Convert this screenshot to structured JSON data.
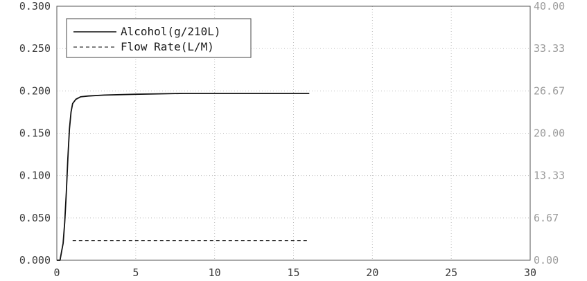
{
  "chart_data": {
    "type": "line",
    "title": "",
    "xlabel": "",
    "ylabel": "",
    "y2label": "",
    "xlim": [
      0,
      30
    ],
    "ylim": [
      0,
      0.3
    ],
    "y2lim": [
      0,
      40
    ],
    "grid": true,
    "legend_position": "top-left",
    "x_ticks": [
      "0",
      "5",
      "10",
      "15",
      "20",
      "25",
      "30"
    ],
    "y_ticks": [
      "0.000",
      "0.050",
      "0.100",
      "0.150",
      "0.200",
      "0.250",
      "0.300"
    ],
    "y2_ticks": [
      "0.00",
      "6.67",
      "13.33",
      "20.00",
      "26.67",
      "33.33",
      "40.00"
    ],
    "series": [
      {
        "name": "Alcohol(g/210L)",
        "axis": "left",
        "style": "solid",
        "color": "#111111",
        "x": [
          0,
          0.2,
          0.3,
          0.4,
          0.5,
          0.6,
          0.7,
          0.8,
          0.9,
          1.0,
          1.2,
          1.5,
          2.0,
          3.0,
          5.0,
          8.0,
          12.0,
          16.0
        ],
        "y": [
          0.0,
          0.0,
          0.01,
          0.02,
          0.045,
          0.08,
          0.12,
          0.155,
          0.175,
          0.185,
          0.19,
          0.193,
          0.194,
          0.195,
          0.196,
          0.197,
          0.197,
          0.197
        ]
      },
      {
        "name": "Flow Rate(L/M)",
        "axis": "right",
        "style": "dashed",
        "color": "#333333",
        "x": [
          1.0,
          16.0
        ],
        "y": [
          3.1,
          3.1
        ]
      }
    ]
  }
}
